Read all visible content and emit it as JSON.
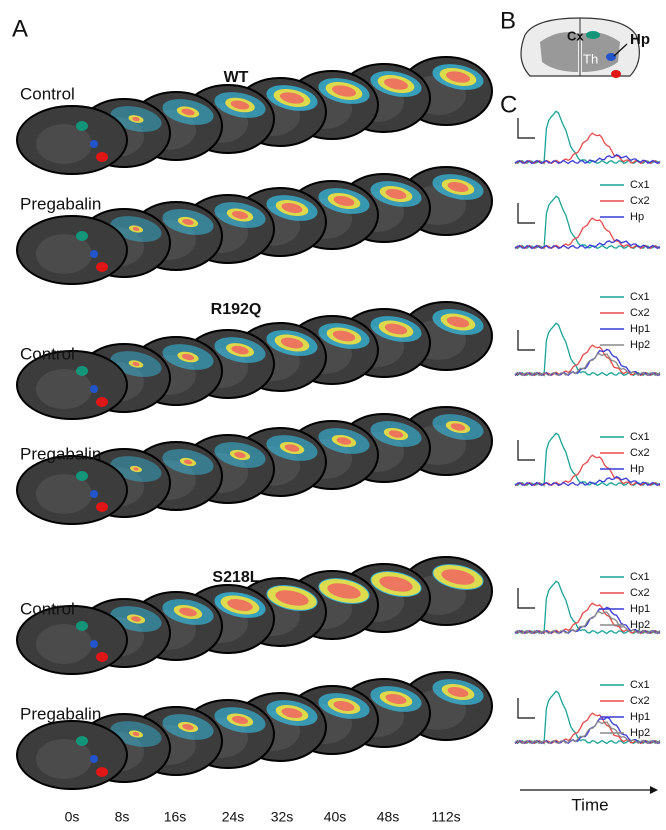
{
  "panel_labels": {
    "a": "A",
    "b": "B",
    "c": "C"
  },
  "diagram": {
    "cortex": "Cx",
    "thalamus": "Th",
    "hippocampus": "Hp"
  },
  "groups": [
    {
      "genotype": "WT",
      "rows": [
        {
          "condition": "Control"
        },
        {
          "condition": "Pregabalin",
          "legend": [
            "Cx1",
            "Cx2",
            "Hp"
          ]
        }
      ]
    },
    {
      "genotype": "R192Q",
      "rows": [
        {
          "condition": "Control",
          "legend": [
            "Cx1",
            "Cx2",
            "Hp1",
            "Hp2"
          ]
        },
        {
          "condition": "Pregabalin",
          "legend": [
            "Cx1",
            "Cx2",
            "Hp"
          ]
        }
      ]
    },
    {
      "genotype": "S218L",
      "rows": [
        {
          "condition": "Control",
          "legend": [
            "Cx1",
            "Cx2",
            "Hp1",
            "Hp2"
          ]
        },
        {
          "condition": "Pregabalin",
          "legend": [
            "Cx1",
            "Cx2",
            "Hp1",
            "Hp2"
          ]
        }
      ]
    }
  ],
  "time_labels": [
    "0s",
    "8s",
    "16s",
    "24s",
    "32s",
    "40s",
    "48s",
    "112s"
  ],
  "time_axis": "Time"
}
